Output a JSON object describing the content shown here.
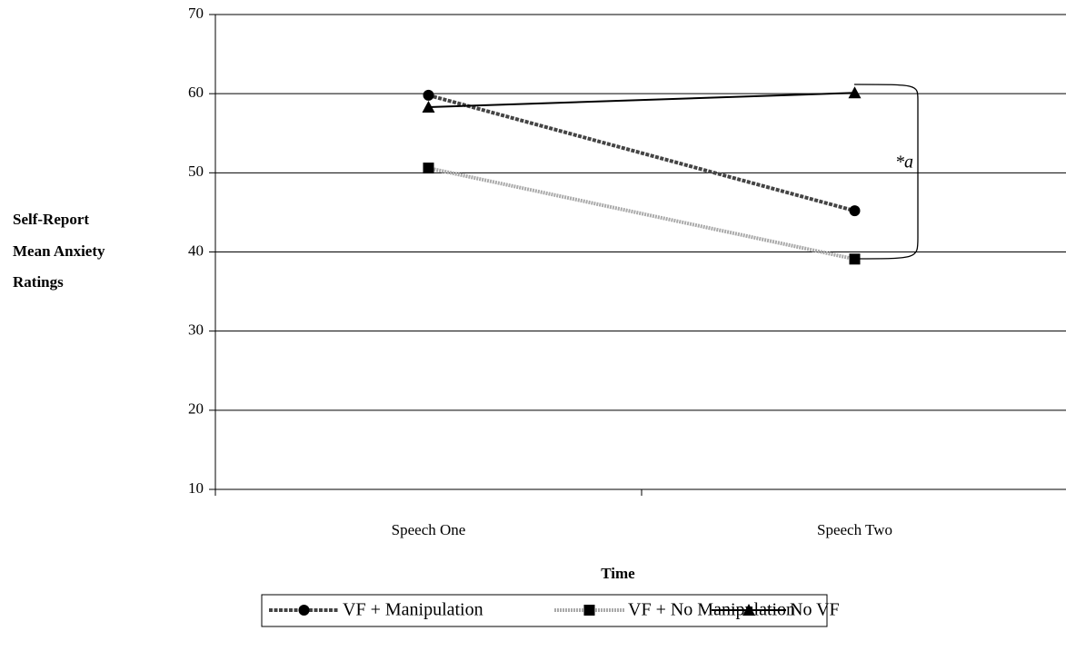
{
  "chart_data": {
    "type": "line",
    "y_label": [
      "Self-Report",
      "Mean Anxiety",
      "Ratings"
    ],
    "x_label": "Time",
    "annotation": "*a",
    "categories": [
      "Speech One",
      "Speech Two"
    ],
    "series": [
      {
        "name": "VF + Manipulation",
        "color": "#444444",
        "marker": "circle",
        "values": [
          59.8,
          45.2
        ]
      },
      {
        "name": "VF + No Manipulation",
        "color": "#aaaaaa",
        "marker": "square",
        "values": [
          50.6,
          39.1
        ]
      },
      {
        "name": "No VF",
        "color": "#000000",
        "marker": "triangle",
        "values": [
          58.3,
          60.1
        ]
      }
    ],
    "ylim": [
      10,
      70
    ],
    "yticks": [
      10,
      20,
      30,
      40,
      50,
      60,
      70
    ],
    "grid": true
  }
}
